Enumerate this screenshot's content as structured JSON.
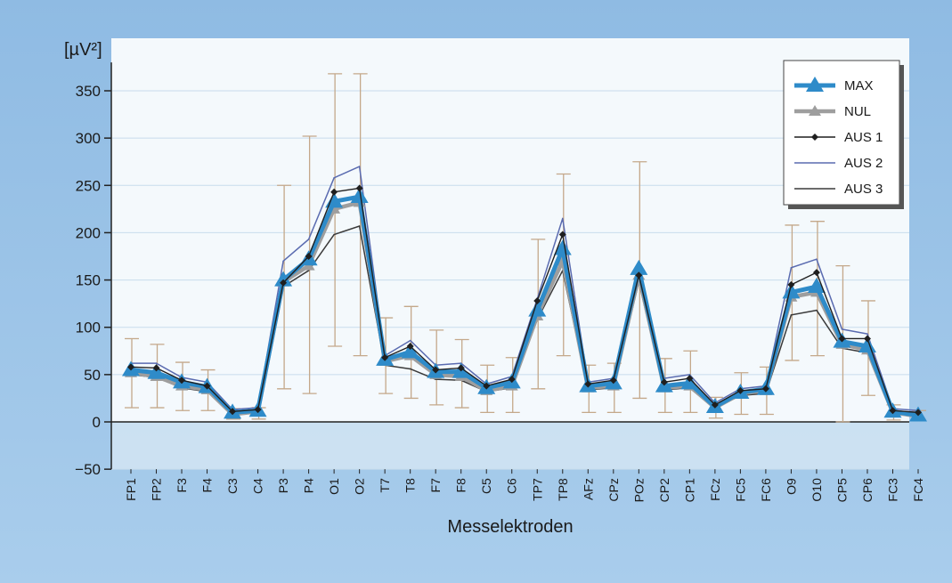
{
  "chart_data": {
    "type": "line",
    "unit_label": "[µV²]",
    "xlabel": "Messelektroden",
    "ylim": [
      -50,
      380
    ],
    "y_ticks": [
      -50,
      0,
      50,
      100,
      150,
      200,
      250,
      300,
      350
    ],
    "categories": [
      "FP1",
      "FP2",
      "F3",
      "F4",
      "C3",
      "C4",
      "P3",
      "P4",
      "O1",
      "O2",
      "T7",
      "T8",
      "F7",
      "F8",
      "C5",
      "C6",
      "TP7",
      "TP8",
      "AFz",
      "CPz",
      "POz",
      "CP2",
      "CP1",
      "FCz",
      "FC5",
      "FC6",
      "O9",
      "O10",
      "CP5",
      "CP6",
      "FC3",
      "FC4"
    ],
    "grid": true,
    "legend_position": "top-right",
    "series": [
      {
        "name": "MAX",
        "color": "#2e8bc9",
        "values": [
          55,
          52,
          42,
          37,
          10,
          12,
          150,
          172,
          233,
          238,
          66,
          74,
          53,
          53,
          36,
          42,
          118,
          183,
          38,
          41,
          162,
          38,
          41,
          16,
          31,
          35,
          137,
          143,
          85,
          80,
          11,
          7
        ]
      },
      {
        "name": "NUL",
        "color": "#9e9e9e",
        "values": [
          52,
          48,
          38,
          34,
          8,
          11,
          148,
          165,
          225,
          232,
          64,
          70,
          50,
          48,
          33,
          38,
          112,
          170,
          36,
          38,
          155,
          36,
          38,
          15,
          30,
          33,
          132,
          137,
          82,
          76,
          10,
          6
        ],
        "error_low": [
          15,
          15,
          12,
          12,
          3,
          3,
          35,
          30,
          80,
          70,
          30,
          25,
          18,
          15,
          10,
          10,
          35,
          70,
          10,
          10,
          25,
          10,
          10,
          4,
          8,
          8,
          65,
          70,
          0,
          28,
          2,
          2
        ],
        "error_high": [
          88,
          82,
          63,
          55,
          14,
          15,
          250,
          302,
          368,
          368,
          110,
          122,
          97,
          87,
          60,
          68,
          193,
          262,
          60,
          62,
          275,
          67,
          75,
          26,
          52,
          58,
          208,
          212,
          165,
          128,
          18,
          12
        ]
      },
      {
        "name": "AUS 1",
        "color": "#1f1f1f",
        "values": [
          58,
          57,
          44,
          38,
          11,
          13,
          147,
          175,
          243,
          247,
          68,
          80,
          55,
          57,
          38,
          45,
          128,
          198,
          40,
          44,
          155,
          42,
          46,
          18,
          33,
          35,
          145,
          158,
          88,
          88,
          12,
          10
        ]
      },
      {
        "name": "AUS 2",
        "color": "#5a6bb0",
        "values": [
          62,
          62,
          47,
          42,
          13,
          15,
          170,
          193,
          258,
          270,
          70,
          86,
          60,
          62,
          40,
          48,
          130,
          215,
          42,
          46,
          158,
          46,
          50,
          20,
          35,
          38,
          163,
          172,
          98,
          93,
          14,
          12
        ]
      },
      {
        "name": "AUS 3",
        "color": "#3a3a3a",
        "values": [
          50,
          47,
          36,
          32,
          8,
          10,
          143,
          160,
          198,
          207,
          60,
          56,
          45,
          44,
          32,
          36,
          108,
          160,
          34,
          36,
          148,
          34,
          36,
          14,
          28,
          30,
          113,
          118,
          78,
          73,
          10,
          5
        ]
      }
    ]
  }
}
